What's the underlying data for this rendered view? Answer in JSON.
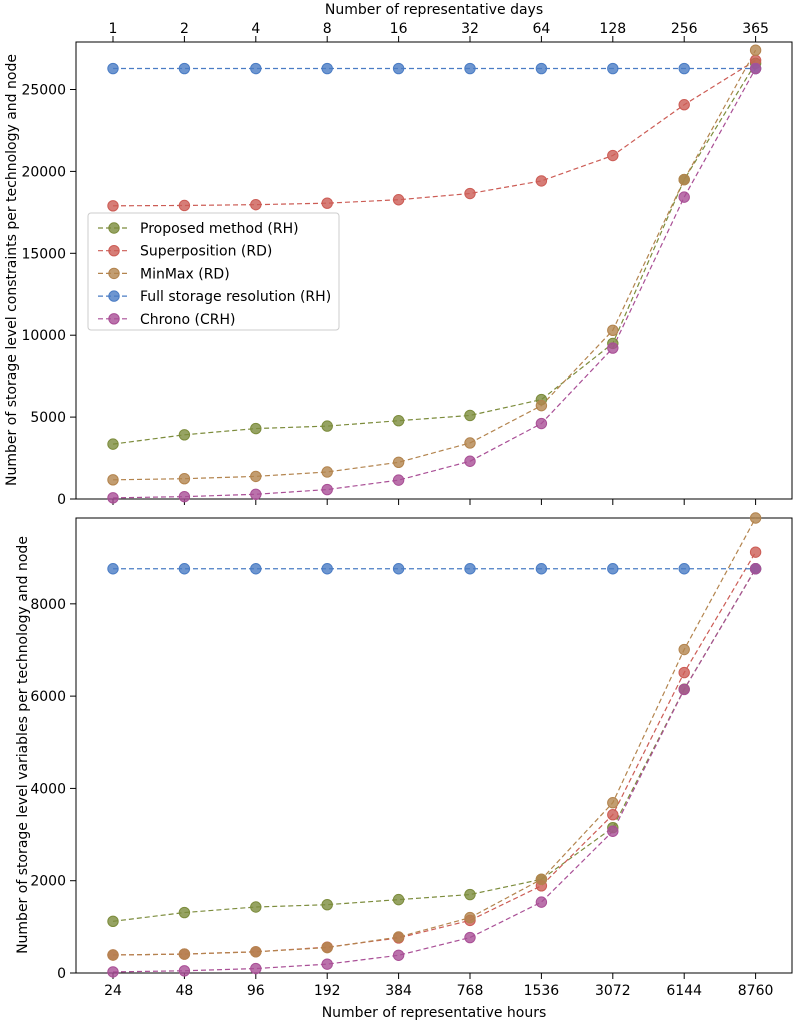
{
  "chart_data": [
    {
      "type": "line",
      "panel": "top",
      "ylabel": "Number of storage level constraints per technology and node",
      "secondary_xlabel": "Number of representative days",
      "secondary_tick_labels": [
        "1",
        "2",
        "4",
        "8",
        "16",
        "32",
        "64",
        "128",
        "256",
        "365"
      ],
      "tick_labels": [
        "24",
        "48",
        "96",
        "192",
        "384",
        "768",
        "1536",
        "3072",
        "6144",
        "8760"
      ],
      "ylim": [
        0,
        27900
      ],
      "yticks": [
        0,
        5000,
        10000,
        15000,
        20000,
        25000
      ],
      "legend": "upper-left",
      "series": [
        {
          "name": "Proposed method (RH)",
          "color": "#7c8c3c",
          "values": [
            3350,
            3920,
            4300,
            4450,
            4780,
            5100,
            6070,
            9500,
            19500,
            26600
          ]
        },
        {
          "name": "Superposition (RD)",
          "color": "#cc5c55",
          "values": [
            17900,
            17920,
            17970,
            18060,
            18270,
            18650,
            19420,
            20970,
            24070,
            26780
          ]
        },
        {
          "name": "MinMax (RD)",
          "color": "#b3844e",
          "values": [
            1170,
            1240,
            1380,
            1650,
            2240,
            3420,
            5700,
            10300,
            19500,
            27400
          ]
        },
        {
          "name": "Full storage resolution (RH)",
          "color": "#4a7cc4",
          "values": [
            26280,
            26280,
            26280,
            26280,
            26280,
            26280,
            26280,
            26280,
            26280,
            26280
          ]
        },
        {
          "name": "Chrono (CRH)",
          "color": "#a94f96",
          "values": [
            72,
            144,
            288,
            576,
            1152,
            2304,
            4608,
            9216,
            18430,
            26280
          ]
        }
      ]
    },
    {
      "type": "line",
      "panel": "bottom",
      "xlabel": "Number of representative hours",
      "ylabel": "Number of storage level variables per technology and node",
      "tick_labels": [
        "24",
        "48",
        "96",
        "192",
        "384",
        "768",
        "1536",
        "3072",
        "6144",
        "8760"
      ],
      "ylim": [
        0,
        9860
      ],
      "yticks": [
        0,
        2000,
        4000,
        6000,
        8000
      ],
      "series": [
        {
          "name": "Proposed method (RH)",
          "color": "#7c8c3c",
          "values": [
            1120,
            1310,
            1430,
            1480,
            1590,
            1700,
            2030,
            3150,
            6150,
            8760
          ]
        },
        {
          "name": "Superposition (RD)",
          "color": "#cc5c55",
          "values": [
            390,
            410,
            460,
            560,
            760,
            1140,
            1890,
            3430,
            6510,
            9120
          ]
        },
        {
          "name": "MinMax (RD)",
          "color": "#b3844e",
          "values": [
            390,
            410,
            460,
            550,
            780,
            1200,
            2030,
            3690,
            7010,
            9860
          ]
        },
        {
          "name": "Full storage resolution (RH)",
          "color": "#4a7cc4",
          "values": [
            8760,
            8760,
            8760,
            8760,
            8760,
            8760,
            8760,
            8760,
            8760,
            8760
          ]
        },
        {
          "name": "Chrono (CRH)",
          "color": "#a94f96",
          "values": [
            24,
            48,
            96,
            192,
            384,
            768,
            1536,
            3072,
            6144,
            8760
          ]
        }
      ]
    }
  ]
}
